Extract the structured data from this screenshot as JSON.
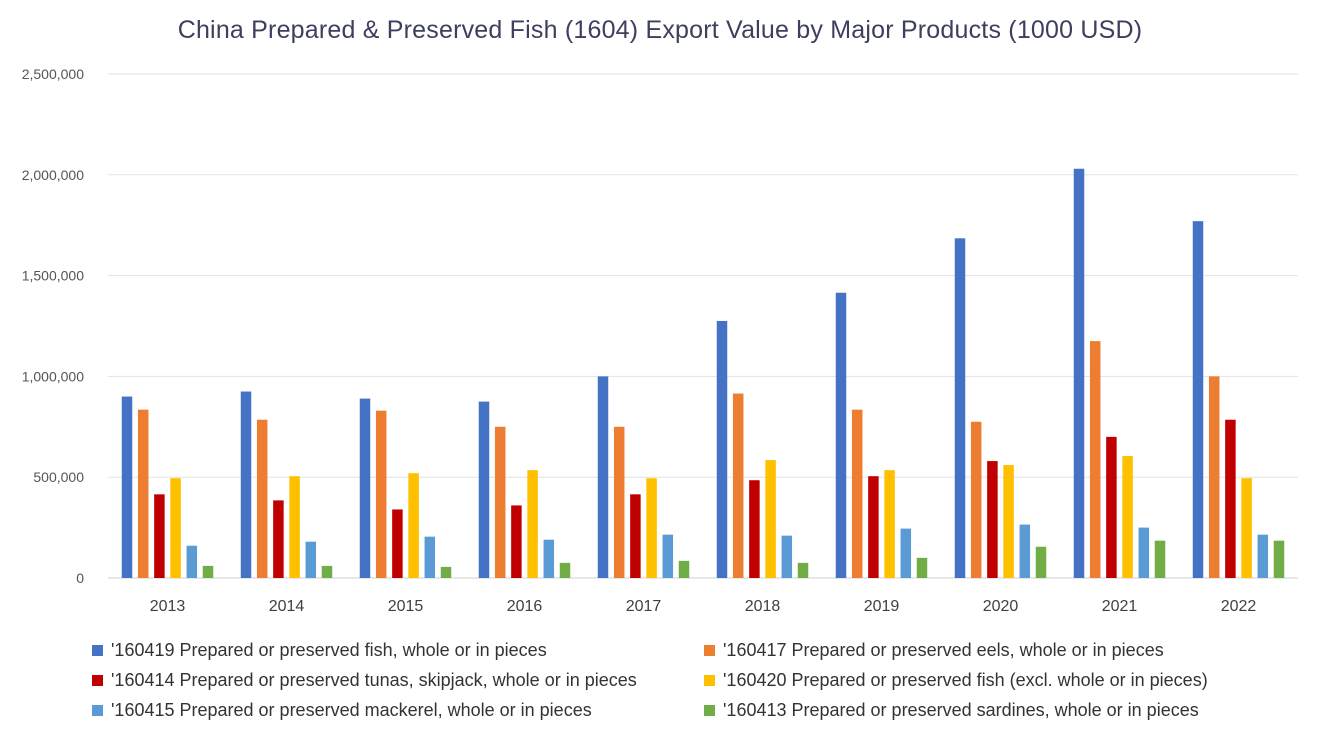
{
  "chart_data": {
    "type": "bar",
    "title": "China Prepared & Preserved Fish (1604) Export Value by Major Products (1000 USD)",
    "xlabel": "",
    "ylabel": "",
    "ylim": [
      0,
      2500000
    ],
    "yticks": [
      {
        "value": 0,
        "label": "0"
      },
      {
        "value": 500000,
        "label": "500,000"
      },
      {
        "value": 1000000,
        "label": "1,000,000"
      },
      {
        "value": 1500000,
        "label": "1,500,000"
      },
      {
        "value": 2000000,
        "label": "2,000,000"
      },
      {
        "value": 2500000,
        "label": "2,500,000"
      }
    ],
    "grid": true,
    "legend_position": "bottom",
    "categories": [
      "2013",
      "2014",
      "2015",
      "2016",
      "2017",
      "2018",
      "2019",
      "2020",
      "2021",
      "2022"
    ],
    "series": [
      {
        "name": "'160419 Prepared or preserved fish, whole or in pieces",
        "color": "#4472c4",
        "values": [
          900000,
          925000,
          890000,
          875000,
          1000000,
          1275000,
          1415000,
          1685000,
          2030000,
          1770000
        ]
      },
      {
        "name": "'160417 Prepared or preserved eels, whole or in pieces",
        "color": "#ed7d31",
        "values": [
          835000,
          785000,
          830000,
          750000,
          750000,
          915000,
          835000,
          775000,
          1175000,
          1000000
        ]
      },
      {
        "name": "'160414 Prepared or preserved tunas, skipjack, whole or in pieces",
        "color": "#c00000",
        "values": [
          415000,
          385000,
          340000,
          360000,
          415000,
          485000,
          505000,
          580000,
          700000,
          785000
        ]
      },
      {
        "name": "'160420 Prepared or preserved fish (excl. whole or in pieces)",
        "color": "#ffc000",
        "values": [
          495000,
          505000,
          520000,
          535000,
          495000,
          585000,
          535000,
          560000,
          605000,
          495000
        ]
      },
      {
        "name": "'160415 Prepared or preserved mackerel, whole or in pieces",
        "color": "#5b9bd5",
        "values": [
          160000,
          180000,
          205000,
          190000,
          215000,
          210000,
          245000,
          265000,
          250000,
          215000
        ]
      },
      {
        "name": "'160413 Prepared or preserved sardines, whole or in pieces",
        "color": "#70ad47",
        "values": [
          60000,
          60000,
          55000,
          75000,
          85000,
          75000,
          100000,
          155000,
          185000,
          185000
        ]
      }
    ]
  }
}
